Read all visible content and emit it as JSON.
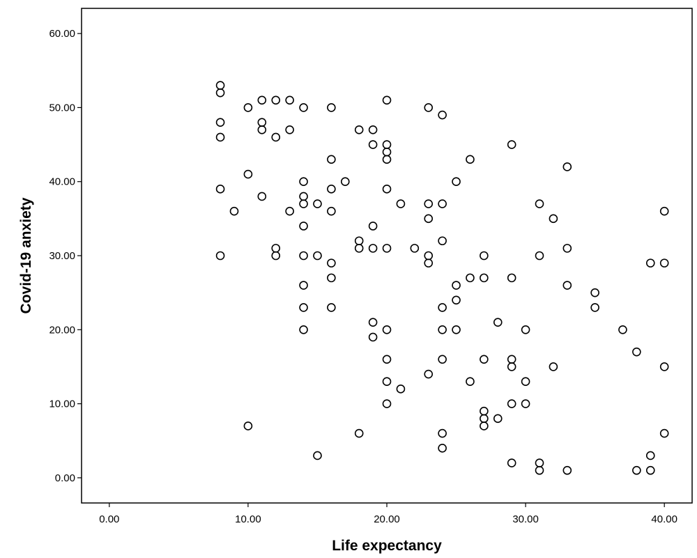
{
  "chart_data": {
    "type": "scatter",
    "xlabel": "Life expectancy",
    "ylabel": "Covid-19 anxiety",
    "xlim": [
      -2,
      42
    ],
    "ylim": [
      -3.4,
      63.4
    ],
    "x_ticks": [
      0,
      10,
      20,
      30,
      40
    ],
    "x_tick_labels": [
      "0.00",
      "10.00",
      "20.00",
      "30.00",
      "40.00"
    ],
    "y_ticks": [
      0,
      10,
      20,
      30,
      40,
      50,
      60
    ],
    "y_tick_labels": [
      "0.00",
      "10.00",
      "20.00",
      "30.00",
      "40.00",
      "50.00",
      "60.00"
    ],
    "grid": false,
    "marker": "open-circle",
    "colors": {
      "marker": "#000000",
      "frame": "#000000",
      "background": "#ffffff"
    },
    "points": [
      [
        8,
        53
      ],
      [
        8,
        52
      ],
      [
        8,
        48
      ],
      [
        8,
        46
      ],
      [
        8,
        39
      ],
      [
        8,
        30
      ],
      [
        9,
        36
      ],
      [
        10,
        50
      ],
      [
        10,
        41
      ],
      [
        10,
        7
      ],
      [
        11,
        51
      ],
      [
        11,
        48
      ],
      [
        11,
        47
      ],
      [
        11,
        38
      ],
      [
        12,
        51
      ],
      [
        12,
        46
      ],
      [
        12,
        31
      ],
      [
        12,
        30
      ],
      [
        13,
        51
      ],
      [
        13,
        47
      ],
      [
        13,
        36
      ],
      [
        14,
        50
      ],
      [
        14,
        40
      ],
      [
        14,
        38
      ],
      [
        14,
        37
      ],
      [
        14,
        34
      ],
      [
        14,
        30
      ],
      [
        14,
        26
      ],
      [
        14,
        23
      ],
      [
        14,
        20
      ],
      [
        15,
        37
      ],
      [
        15,
        30
      ],
      [
        15,
        3
      ],
      [
        16,
        50
      ],
      [
        16,
        43
      ],
      [
        16,
        39
      ],
      [
        16,
        36
      ],
      [
        16,
        29
      ],
      [
        16,
        27
      ],
      [
        16,
        23
      ],
      [
        17,
        40
      ],
      [
        18,
        47
      ],
      [
        18,
        32
      ],
      [
        18,
        31
      ],
      [
        18,
        6
      ],
      [
        19,
        47
      ],
      [
        19,
        45
      ],
      [
        19,
        34
      ],
      [
        19,
        31
      ],
      [
        19,
        21
      ],
      [
        19,
        19
      ],
      [
        20,
        51
      ],
      [
        20,
        45
      ],
      [
        20,
        44
      ],
      [
        20,
        43
      ],
      [
        20,
        39
      ],
      [
        20,
        31
      ],
      [
        20,
        20
      ],
      [
        20,
        16
      ],
      [
        20,
        13
      ],
      [
        20,
        10
      ],
      [
        21,
        37
      ],
      [
        21,
        12
      ],
      [
        22,
        31
      ],
      [
        23,
        50
      ],
      [
        23,
        37
      ],
      [
        23,
        35
      ],
      [
        23,
        30
      ],
      [
        23,
        29
      ],
      [
        23,
        14
      ],
      [
        24,
        49
      ],
      [
        24,
        37
      ],
      [
        24,
        32
      ],
      [
        24,
        23
      ],
      [
        24,
        20
      ],
      [
        24,
        16
      ],
      [
        24,
        6
      ],
      [
        24,
        4
      ],
      [
        25,
        40
      ],
      [
        25,
        26
      ],
      [
        25,
        24
      ],
      [
        25,
        20
      ],
      [
        26,
        43
      ],
      [
        26,
        27
      ],
      [
        26,
        13
      ],
      [
        27,
        30
      ],
      [
        27,
        27
      ],
      [
        27,
        16
      ],
      [
        27,
        9
      ],
      [
        27,
        8
      ],
      [
        27,
        7
      ],
      [
        28,
        21
      ],
      [
        28,
        8
      ],
      [
        29,
        45
      ],
      [
        29,
        27
      ],
      [
        29,
        16
      ],
      [
        29,
        15
      ],
      [
        29,
        10
      ],
      [
        29,
        2
      ],
      [
        30,
        20
      ],
      [
        30,
        13
      ],
      [
        30,
        10
      ],
      [
        31,
        37
      ],
      [
        31,
        30
      ],
      [
        31,
        2
      ],
      [
        31,
        1
      ],
      [
        32,
        35
      ],
      [
        32,
        15
      ],
      [
        33,
        42
      ],
      [
        33,
        31
      ],
      [
        33,
        26
      ],
      [
        33,
        1
      ],
      [
        35,
        25
      ],
      [
        35,
        23
      ],
      [
        37,
        20
      ],
      [
        38,
        17
      ],
      [
        38,
        1
      ],
      [
        39,
        29
      ],
      [
        39,
        3
      ],
      [
        39,
        1
      ],
      [
        40,
        36
      ],
      [
        40,
        29
      ],
      [
        40,
        15
      ],
      [
        40,
        6
      ]
    ]
  }
}
